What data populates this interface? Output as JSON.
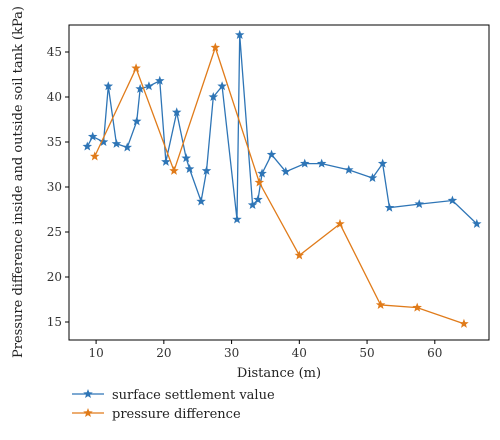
{
  "chart_data": {
    "type": "line",
    "xlabel": "Distance (m)",
    "ylabel": "Pressure difference inside and outside soil tank (kPa)",
    "xlim": [
      6,
      68
    ],
    "ylim": [
      13,
      48
    ],
    "x_ticks": [
      10,
      20,
      30,
      40,
      50,
      60
    ],
    "y_ticks": [
      15,
      20,
      25,
      30,
      35,
      40,
      45
    ],
    "grid": false,
    "legend_placement": "below plot, left",
    "marker": "star",
    "series": [
      {
        "name": "surface settlement value",
        "color": "#2e75b6",
        "x": [
          8.7,
          9.5,
          11.1,
          11.8,
          13.0,
          14.6,
          16.0,
          16.5,
          17.8,
          19.4,
          20.3,
          21.9,
          23.3,
          23.8,
          25.5,
          26.3,
          27.3,
          28.6,
          30.8,
          31.2,
          33.1,
          33.9,
          34.5,
          35.9,
          38.0,
          40.8,
          43.3,
          47.3,
          50.8,
          52.3,
          53.3,
          57.7,
          62.6,
          66.2
        ],
        "y": [
          34.5,
          35.6,
          35.0,
          41.2,
          34.8,
          34.4,
          37.3,
          40.9,
          41.2,
          41.8,
          32.8,
          38.3,
          33.2,
          32.0,
          28.4,
          31.8,
          40.0,
          41.2,
          26.4,
          46.9,
          28.0,
          28.6,
          31.5,
          33.6,
          31.7,
          32.6,
          32.6,
          31.9,
          31.0,
          32.6,
          27.7,
          28.1,
          28.5,
          25.9
        ]
      },
      {
        "name": "pressure difference",
        "color": "#e07b1a",
        "x": [
          9.8,
          15.9,
          21.5,
          27.6,
          34.1,
          40.0,
          46.0,
          52.0,
          57.4,
          64.3
        ],
        "y": [
          33.4,
          43.2,
          31.8,
          45.5,
          30.5,
          22.4,
          25.9,
          16.9,
          16.6,
          14.8
        ]
      }
    ]
  }
}
